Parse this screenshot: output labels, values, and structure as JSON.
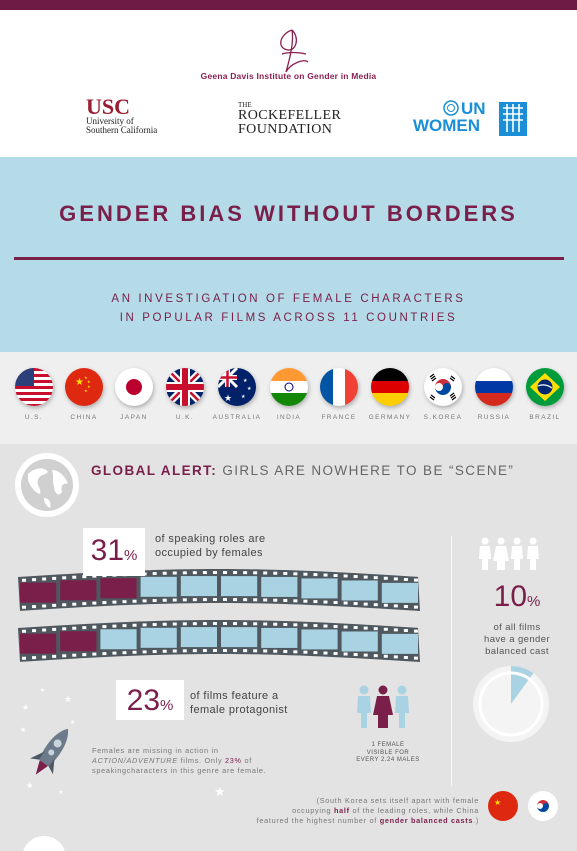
{
  "header": {
    "institute_name": "Geena Davis Institute on Gender in Media",
    "logos": {
      "usc_main": "USC",
      "usc_line1": "University of",
      "usc_line2": "Southern California",
      "rockefeller_the": "THE",
      "rockefeller_line1": "ROCKEFELLER",
      "rockefeller_line2": "FOUNDATION",
      "unwomen_line1": "UN",
      "unwomen_line2": "WOMEN"
    }
  },
  "title": {
    "main": "GENDER BIAS WITHOUT BORDERS",
    "subtitle_line1": "AN INVESTIGATION OF FEMALE CHARACTERS",
    "subtitle_line2": "IN POPULAR FILMS ACROSS 11 COUNTRIES"
  },
  "countries": [
    "U.S.",
    "CHINA",
    "JAPAN",
    "U.K.",
    "AUSTRALIA",
    "INDIA",
    "FRANCE",
    "GERMANY",
    "S.KOREA",
    "RUSSIA",
    "BRAZIL"
  ],
  "alert": {
    "lead": "GLOBAL ALERT:",
    "rest": " GIRLS ARE NOWHERE TO BE “SCENE”"
  },
  "stats": {
    "speaking": {
      "value": "31",
      "unit": "%",
      "line1": "of speaking roles are",
      "line2": "occupied by females",
      "fraction": 0.31
    },
    "protagonist": {
      "value": "23",
      "unit": "%",
      "line1": "of films feature a",
      "line2": "female protagonist",
      "fraction": 0.23
    },
    "balanced": {
      "value": "10",
      "unit": "%",
      "line1": "of all films",
      "line2": "have a gender",
      "line3": "balanced cast",
      "fraction": 0.1
    },
    "visibility": {
      "line1": "1 FEMALE",
      "line2": "VISIBLE FOR",
      "line3": "EVERY 2.24 MALES"
    }
  },
  "action_note": {
    "line1": "Females are missing in action in",
    "line2a": "ACTION/ADVENTURE",
    "line2b": " films. Only ",
    "line2c": "23%",
    "line2d": " of",
    "line3": "speakingcharacters in this genre are female."
  },
  "korea_note": {
    "l1a": "(South Korea sets itself apart with female",
    "l2a": "occupying ",
    "l2b": "half",
    "l2c": " of the leading roles, while China",
    "l3a": "featured the highest number of ",
    "l3b": "gender balanced casts",
    "l3c": ".)"
  },
  "colors": {
    "accent": "#7a1e4a",
    "light_blue": "#b4dbe7",
    "film_blue": "#a9d3e2"
  }
}
